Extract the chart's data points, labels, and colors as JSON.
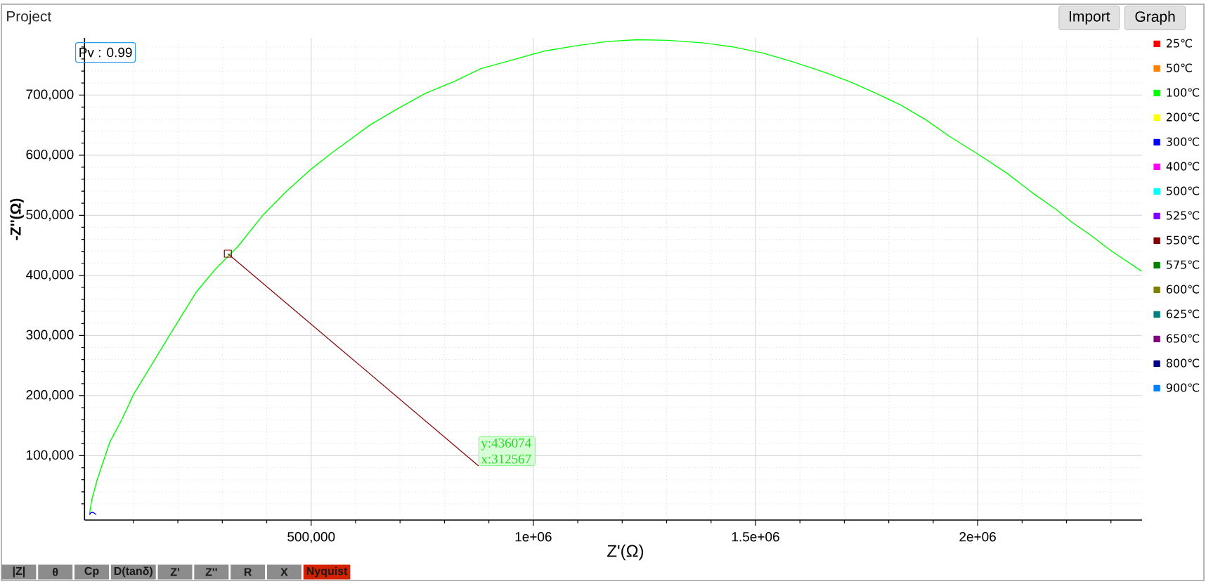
{
  "chart_data": {
    "type": "line",
    "title": "Project",
    "xlabel": "Z'(Ω)",
    "ylabel": "-Z''(Ω)",
    "xlim": [
      -10000,
      2370000
    ],
    "ylim": [
      -7000,
      795000
    ],
    "xticks": [
      {
        "value": 500000,
        "label": "500,000"
      },
      {
        "value": 1000000,
        "label": "1e+06"
      },
      {
        "value": 1500000,
        "label": "1.5e+06"
      },
      {
        "value": 2000000,
        "label": "2e+06"
      }
    ],
    "yticks": [
      {
        "value": 100000,
        "label": "100,000"
      },
      {
        "value": 200000,
        "label": "200,000"
      },
      {
        "value": 300000,
        "label": "300,000"
      },
      {
        "value": 400000,
        "label": "400,000"
      },
      {
        "value": 500000,
        "label": "500,000"
      },
      {
        "value": 600000,
        "label": "600,000"
      },
      {
        "value": 700000,
        "label": "700,000"
      }
    ],
    "grid": true,
    "legend": "right",
    "series": [
      {
        "name": "25℃",
        "color": "#ff0000"
      },
      {
        "name": "50℃",
        "color": "#ff8000"
      },
      {
        "name": "100℃",
        "color": "#00ff00",
        "x": [
          1000,
          6000,
          18000,
          47000,
          73000,
          101000,
          181000,
          241000,
          284000,
          335000,
          391000,
          446000,
          497000,
          545000,
          634000,
          699000,
          758000,
          823000,
          882000,
          951000,
          1024000,
          1096000,
          1165000,
          1233000,
          1302000,
          1380000,
          1450000,
          1516000,
          1581000,
          1651000,
          1713000,
          1774000,
          1828000,
          1883000,
          1937000,
          1998000,
          2064000,
          2122000,
          2176000,
          2211000,
          2254000,
          2300000,
          2369000
        ],
        "values": [
          3000,
          26000,
          59000,
          123000,
          159000,
          203000,
          300000,
          372000,
          410000,
          448000,
          500000,
          541000,
          575000,
          603000,
          651000,
          679000,
          703000,
          723000,
          744000,
          758000,
          773000,
          782000,
          789000,
          792000,
          791000,
          787000,
          780000,
          770000,
          756000,
          739000,
          722000,
          702000,
          683000,
          659000,
          631000,
          603000,
          571000,
          538000,
          510000,
          489000,
          467000,
          441000,
          407000
        ]
      },
      {
        "name": "200℃",
        "color": "#ffff00"
      },
      {
        "name": "300℃",
        "color": "#0000ff",
        "x": [
          1000,
          4000,
          7000,
          11000,
          16000
        ],
        "values": [
          2000,
          5000,
          6000,
          5000,
          2000
        ]
      },
      {
        "name": "400℃",
        "color": "#ff00ff"
      },
      {
        "name": "500℃",
        "color": "#00ffff"
      },
      {
        "name": "525℃",
        "color": "#8000ff"
      },
      {
        "name": "550℃",
        "color": "#800000"
      },
      {
        "name": "575℃",
        "color": "#008000"
      },
      {
        "name": "600℃",
        "color": "#808000"
      },
      {
        "name": "625℃",
        "color": "#008080"
      },
      {
        "name": "650℃",
        "color": "#800080"
      },
      {
        "name": "800℃",
        "color": "#000080"
      },
      {
        "name": "900℃",
        "color": "#0080ff"
      }
    ],
    "annotations": [
      "Pv : 0.99",
      {
        "text": "y:436074 x:312567",
        "x": 312567,
        "y": 436074
      },
      "Import",
      "Graph",
      "|Z|",
      "θ",
      "Cp",
      "D(tanδ)",
      "Z'",
      "Z''",
      "R",
      "X",
      "Nyquist"
    ]
  }
}
